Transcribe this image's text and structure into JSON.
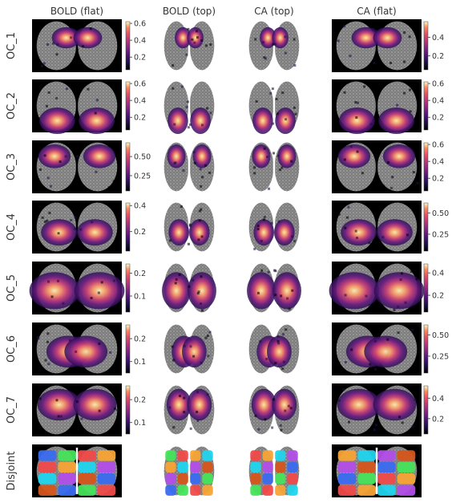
{
  "chart_data": {
    "type": "heatmap",
    "columns": [
      "BOLD (flat)",
      "BOLD (top)",
      "CA (top)",
      "CA (flat)"
    ],
    "rows": [
      "OC_1",
      "OC_2",
      "OC_3",
      "OC_4",
      "OC_5",
      "OC_6",
      "OC_7",
      "Disjoint"
    ],
    "colormap": "magma",
    "colorbars": [
      {
        "row": "OC_1",
        "column": "BOLD (flat)",
        "range": [
          0.05,
          0.62
        ],
        "ticks": [
          0.2,
          0.4,
          0.6
        ],
        "tick_labels": [
          "0.2",
          "0.4",
          "0.6"
        ]
      },
      {
        "row": "OC_1",
        "column": "CA (flat)",
        "range": [
          0.05,
          0.57
        ],
        "ticks": [
          0.2,
          0.4
        ],
        "tick_labels": [
          "0.2",
          "0.4"
        ]
      },
      {
        "row": "OC_2",
        "column": "BOLD (flat)",
        "range": [
          0.05,
          0.62
        ],
        "ticks": [
          0.2,
          0.4,
          0.6
        ],
        "tick_labels": [
          "0.2",
          "0.4",
          "0.6"
        ]
      },
      {
        "row": "OC_2",
        "column": "CA (flat)",
        "range": [
          0.05,
          0.62
        ],
        "ticks": [
          0.2,
          0.4,
          0.6
        ],
        "tick_labels": [
          "0.2",
          "0.4",
          "0.6"
        ]
      },
      {
        "row": "OC_3",
        "column": "BOLD (flat)",
        "range": [
          0.05,
          0.68
        ],
        "ticks": [
          0.25,
          0.5
        ],
        "tick_labels": [
          "0.25",
          "0.50"
        ]
      },
      {
        "row": "OC_3",
        "column": "CA (flat)",
        "range": [
          0.05,
          0.62
        ],
        "ticks": [
          0.2,
          0.4,
          0.6
        ],
        "tick_labels": [
          "0.2",
          "0.4",
          "0.6"
        ]
      },
      {
        "row": "OC_4",
        "column": "BOLD (flat)",
        "range": [
          0.05,
          0.42
        ],
        "ticks": [
          0.2,
          0.4
        ],
        "tick_labels": [
          "0.2",
          "0.4"
        ]
      },
      {
        "row": "OC_4",
        "column": "CA (flat)",
        "range": [
          0.05,
          0.62
        ],
        "ticks": [
          0.25,
          0.5
        ],
        "tick_labels": [
          "0.25",
          "0.50"
        ]
      },
      {
        "row": "OC_5",
        "column": "BOLD (flat)",
        "range": [
          0.03,
          0.24
        ],
        "ticks": [
          0.1,
          0.2
        ],
        "tick_labels": [
          "0.1",
          "0.2"
        ]
      },
      {
        "row": "OC_5",
        "column": "CA (flat)",
        "range": [
          0.05,
          0.48
        ],
        "ticks": [
          0.2,
          0.4
        ],
        "tick_labels": [
          "0.2",
          "0.4"
        ]
      },
      {
        "row": "OC_6",
        "column": "BOLD (flat)",
        "range": [
          0.05,
          0.26
        ],
        "ticks": [
          0.1,
          0.2
        ],
        "tick_labels": [
          "0.1",
          "0.2"
        ]
      },
      {
        "row": "OC_6",
        "column": "CA (flat)",
        "range": [
          0.05,
          0.62
        ],
        "ticks": [
          0.25,
          0.5
        ],
        "tick_labels": [
          "0.25",
          "0.50"
        ]
      },
      {
        "row": "OC_7",
        "column": "BOLD (flat)",
        "range": [
          0.05,
          0.26
        ],
        "ticks": [
          0.1,
          0.2
        ],
        "tick_labels": [
          "0.1",
          "0.2"
        ]
      },
      {
        "row": "OC_7",
        "column": "CA (flat)",
        "range": [
          0.05,
          0.52
        ],
        "ticks": [
          0.2,
          0.4
        ],
        "tick_labels": [
          "0.2",
          "0.4"
        ]
      }
    ],
    "disjoint_colors": [
      "#3a6cf0",
      "#46e35a",
      "#f04a4a",
      "#f7a436",
      "#1fd5ee",
      "#b24ee8",
      "#d5551a"
    ]
  },
  "colors": {
    "background": "#ffffff",
    "black_background": "#000000",
    "cortex_gray": "#8c8c8c"
  }
}
